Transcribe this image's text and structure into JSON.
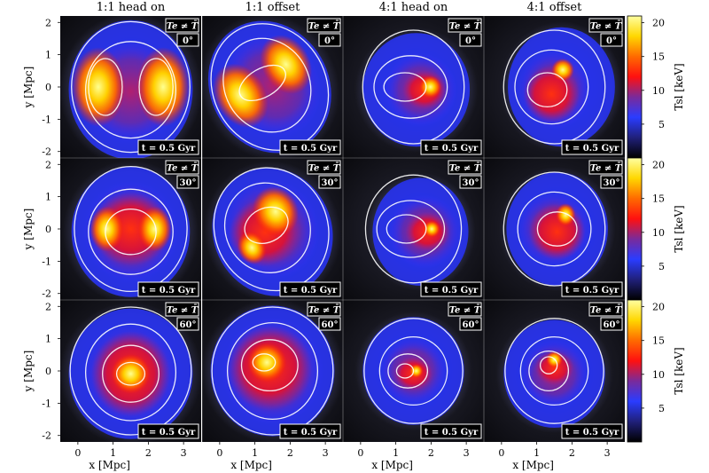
{
  "chart_data": {
    "type": "heatmap",
    "description_of_grid": "3 rows (inclination angles) x 4 columns (merger setups)",
    "columns": [
      "1:1 head on",
      "1:1 offset",
      "4:1 head on",
      "4:1 offset"
    ],
    "rows": [
      "0°",
      "30°",
      "60°"
    ],
    "badge": "Te ≠ T̄",
    "time_label": "t = 0.5 Gyr",
    "xlabel": "x [Mpc]",
    "ylabel": "y [Mpc]",
    "x_ticks": [
      "0",
      "1",
      "2",
      "3"
    ],
    "y_ticks": [
      "2",
      "1",
      "0",
      "-1",
      "-2"
    ],
    "xlim": [
      -0.5,
      3.5
    ],
    "ylim": [
      -2.2,
      2.2
    ],
    "colorbar": {
      "label": "Tsl [keV]",
      "ticks": [
        "20",
        "15",
        "10",
        "5"
      ],
      "range": [
        0,
        21
      ],
      "colors": [
        "#000000",
        "#20207a",
        "#2a3cff",
        "#7a2a9a",
        "#ff1010",
        "#ff6a00",
        "#ffd700",
        "#ffffa0"
      ]
    },
    "panels": [
      {
        "row": 0,
        "col": 0,
        "angle": "0°",
        "peak_temperature_keV": 20
      },
      {
        "row": 0,
        "col": 1,
        "angle": "0°",
        "peak_temperature_keV": 20
      },
      {
        "row": 0,
        "col": 2,
        "angle": "0°",
        "peak_temperature_keV": 14
      },
      {
        "row": 0,
        "col": 3,
        "angle": "0°",
        "peak_temperature_keV": 15
      },
      {
        "row": 1,
        "col": 0,
        "angle": "30°",
        "peak_temperature_keV": 15
      },
      {
        "row": 1,
        "col": 1,
        "angle": "30°",
        "peak_temperature_keV": 18
      },
      {
        "row": 1,
        "col": 2,
        "angle": "30°",
        "peak_temperature_keV": 12
      },
      {
        "row": 1,
        "col": 3,
        "angle": "30°",
        "peak_temperature_keV": 14
      },
      {
        "row": 2,
        "col": 0,
        "angle": "60°",
        "peak_temperature_keV": 14
      },
      {
        "row": 2,
        "col": 1,
        "angle": "60°",
        "peak_temperature_keV": 14
      },
      {
        "row": 2,
        "col": 2,
        "angle": "60°",
        "peak_temperature_keV": 11
      },
      {
        "row": 2,
        "col": 3,
        "angle": "60°",
        "peak_temperature_keV": 12
      }
    ]
  }
}
